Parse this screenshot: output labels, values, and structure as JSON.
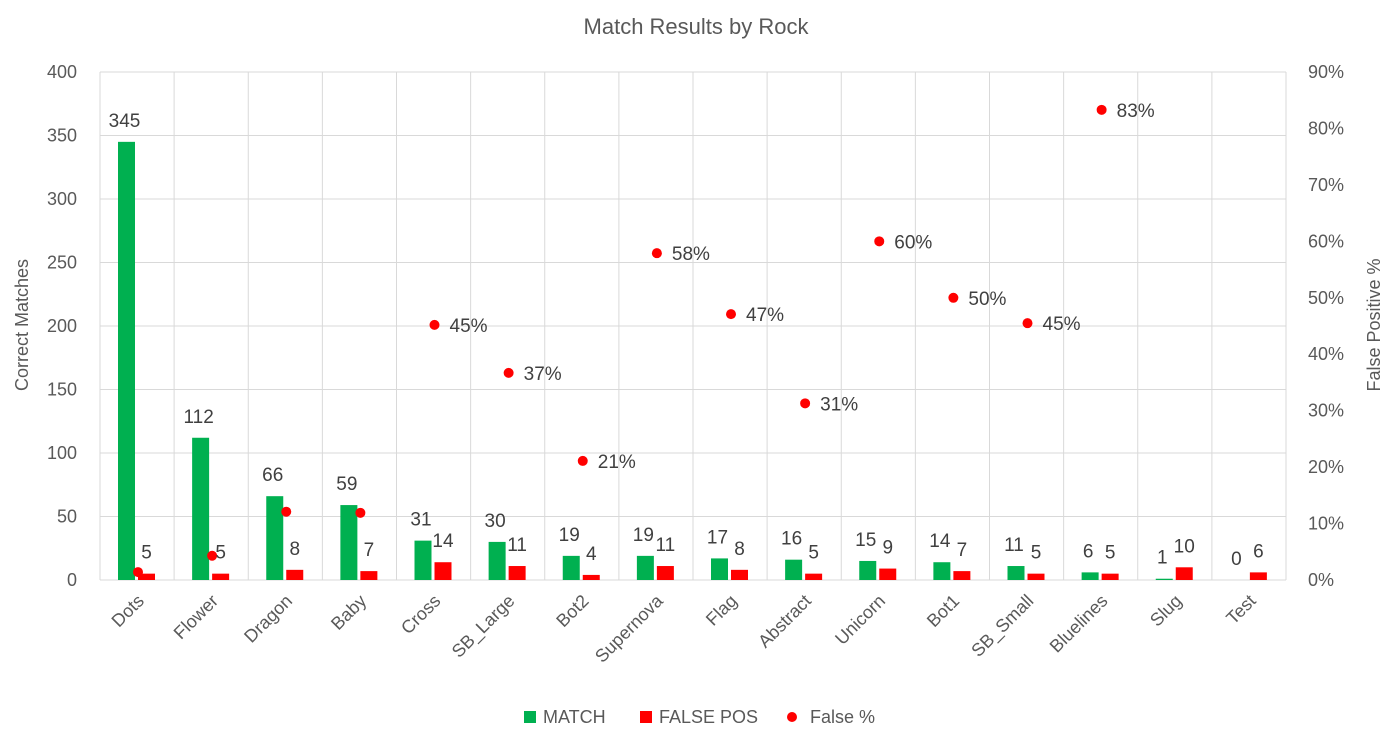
{
  "chart_data": {
    "type": "bar",
    "title": "Match Results by Rock",
    "ylabel": "Correct Matches",
    "y2label": "False Positive %",
    "ylim": [
      0,
      400
    ],
    "y2lim": [
      0,
      0.9
    ],
    "yticks": [
      "0",
      "50",
      "100",
      "150",
      "200",
      "250",
      "300",
      "350",
      "400"
    ],
    "y2ticks": [
      "0%",
      "10%",
      "20%",
      "30%",
      "40%",
      "50%",
      "60%",
      "70%",
      "80%",
      "90%"
    ],
    "grid": true,
    "legend_position": "bottom",
    "categories": [
      "Dots",
      "Flower",
      "Dragon",
      "Baby",
      "Cross",
      "SB_Large",
      "Bot2",
      "Supernova",
      "Flag",
      "Abstract",
      "Unicorn",
      "Bot1",
      "SB_Small",
      "Bluelines",
      "Slug",
      "Test"
    ],
    "series": [
      {
        "name": "MATCH",
        "type": "bar",
        "color": "#00b050",
        "values": [
          345,
          112,
          66,
          59,
          31,
          30,
          19,
          19,
          17,
          16,
          15,
          14,
          11,
          6,
          1,
          0
        ],
        "labels": [
          "345",
          "112",
          "66",
          "59",
          "31",
          "30",
          "19",
          "19",
          "17",
          "16",
          "15",
          "14",
          "11",
          "6",
          "1",
          "0"
        ]
      },
      {
        "name": "FALSE POS",
        "type": "bar",
        "color": "#ff0000",
        "values": [
          5,
          5,
          8,
          7,
          14,
          11,
          4,
          11,
          8,
          5,
          9,
          7,
          5,
          5,
          10,
          6
        ],
        "labels": [
          "5",
          "5",
          "8",
          "7",
          "14",
          "11",
          "4",
          "11",
          "8",
          "5",
          "9",
          "7",
          "5",
          "5",
          "10",
          "6"
        ]
      },
      {
        "name": "False %",
        "type": "scatter",
        "axis": "secondary",
        "color": "#ff0000",
        "values": [
          0.014,
          0.043,
          0.121,
          0.119,
          0.452,
          0.367,
          0.211,
          0.579,
          0.471,
          0.313,
          0.6,
          0.5,
          0.455,
          0.833,
          null,
          null
        ],
        "labels": [
          "",
          "",
          "",
          "",
          "45%",
          "37%",
          "21%",
          "58%",
          "47%",
          "31%",
          "60%",
          "50%",
          "45%",
          "83%",
          "",
          ""
        ]
      }
    ]
  }
}
